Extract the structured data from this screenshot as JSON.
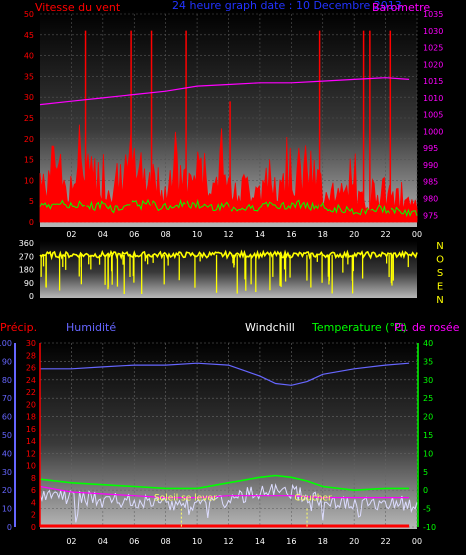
{
  "header": {
    "left_title": "Vitesse du vent",
    "center_title": "24 heure graph date : 10 Decembre 2013",
    "right_title": "Barometre"
  },
  "colors": {
    "wind": "#ff0000",
    "gust_base": "#00ff00",
    "barometer": "#ff00ff",
    "direction": "#ffff00",
    "humidity": "#6666ff",
    "temperature": "#00ff00",
    "dewpoint": "#ff00ff",
    "windchill": "#ffffff",
    "rain": "#ff0000",
    "precip_axis": "#6666ff",
    "label_blue": "#2233ff",
    "annotation": "#ffff66"
  },
  "time_labels": [
    "02",
    "04",
    "06",
    "08",
    "10",
    "12",
    "14",
    "16",
    "18",
    "20",
    "22",
    "00"
  ],
  "compass": [
    "N",
    "O",
    "S",
    "E",
    "N"
  ],
  "chart_data": [
    {
      "type": "line",
      "name": "wind",
      "y_left_ticks": [
        0,
        5,
        10,
        15,
        20,
        25,
        30,
        35,
        40,
        45,
        50
      ],
      "y_right_ticks": [
        975,
        980,
        985,
        990,
        995,
        1000,
        1005,
        1010,
        1015,
        1020,
        1025,
        1030,
        1035
      ],
      "ylim_left": [
        0,
        50
      ],
      "ylim_right": [
        973,
        1035
      ],
      "wind_base_avg": [
        14,
        12,
        16,
        10,
        12,
        13,
        11,
        14,
        9,
        12,
        13,
        12,
        14,
        10,
        11,
        13,
        12,
        13,
        12,
        11,
        12,
        10,
        9,
        10,
        11,
        12,
        11,
        13,
        14,
        12,
        11,
        10,
        9,
        8,
        7,
        6,
        8,
        9,
        7,
        6,
        5,
        4
      ],
      "gust_spikes": [
        [
          2.9,
          46
        ],
        [
          5.8,
          46
        ],
        [
          7.1,
          46
        ],
        [
          9.3,
          46
        ],
        [
          17.8,
          46
        ],
        [
          20.6,
          46
        ],
        [
          21.0,
          46
        ],
        [
          22.3,
          46
        ],
        [
          12.1,
          29
        ]
      ],
      "barometer": [
        [
          0,
          1008
        ],
        [
          2,
          1009
        ],
        [
          4,
          1010
        ],
        [
          6,
          1011
        ],
        [
          8,
          1012
        ],
        [
          10,
          1013.5
        ],
        [
          12,
          1014
        ],
        [
          14,
          1014.5
        ],
        [
          16,
          1014.5
        ],
        [
          18,
          1015
        ],
        [
          20,
          1015.5
        ],
        [
          22,
          1016
        ],
        [
          23.5,
          1015.5
        ]
      ]
    },
    {
      "type": "scatter",
      "name": "wind_direction",
      "y_ticks": [
        0,
        90,
        180,
        270,
        360
      ],
      "ylim": [
        0,
        360
      ],
      "level": 280,
      "spread": 40
    },
    {
      "type": "line",
      "name": "weather",
      "labels": {
        "precip": "Précip.",
        "humidity": "Humidité",
        "windchill": "Windchill",
        "temperature": "Temperature (°C)",
        "dewpoint": "Pt. de rosée",
        "sunrise": "Soleil se lever",
        "sunset": "Coucher"
      },
      "humidity_ticks": [
        0,
        10,
        20,
        30,
        40,
        50,
        60,
        70,
        80,
        90,
        100
      ],
      "precip_ticks": [
        0,
        2,
        4,
        6,
        8,
        10,
        12,
        14,
        16,
        18,
        20,
        22,
        24,
        26,
        28,
        30
      ],
      "temp_ticks": [
        -10,
        -5,
        0,
        5,
        10,
        15,
        20,
        25,
        30,
        35,
        40
      ],
      "humidity_ylim": [
        0,
        100
      ],
      "precip_ylim": [
        0,
        30
      ],
      "temp_ylim": [
        -10,
        40
      ],
      "humidity": [
        [
          0,
          86
        ],
        [
          2,
          86
        ],
        [
          4,
          87
        ],
        [
          6,
          88
        ],
        [
          8,
          88
        ],
        [
          10,
          89
        ],
        [
          12,
          88
        ],
        [
          13,
          85
        ],
        [
          14,
          82
        ],
        [
          15,
          78
        ],
        [
          16,
          77
        ],
        [
          17,
          79
        ],
        [
          18,
          83
        ],
        [
          20,
          86
        ],
        [
          22,
          88
        ],
        [
          23.5,
          89
        ]
      ],
      "temperature": [
        [
          0,
          3
        ],
        [
          2,
          2
        ],
        [
          4,
          1.5
        ],
        [
          6,
          1
        ],
        [
          8,
          0.5
        ],
        [
          10,
          0.5
        ],
        [
          12,
          2
        ],
        [
          14,
          3.5
        ],
        [
          15,
          4
        ],
        [
          16,
          3.5
        ],
        [
          17,
          2.5
        ],
        [
          18,
          1
        ],
        [
          20,
          0
        ],
        [
          22,
          0.5
        ],
        [
          23.5,
          0.5
        ]
      ],
      "dewpoint": [
        [
          0,
          1
        ],
        [
          2,
          -0.5
        ],
        [
          4,
          -1
        ],
        [
          6,
          -1.5
        ],
        [
          8,
          -2
        ],
        [
          10,
          -2
        ],
        [
          12,
          -1.5
        ],
        [
          14,
          -1.5
        ],
        [
          15,
          -1.5
        ],
        [
          16,
          -1.5
        ],
        [
          18,
          -2
        ],
        [
          20,
          -2
        ],
        [
          22,
          -2
        ],
        [
          23.5,
          -2
        ]
      ],
      "rain": [
        [
          0,
          0
        ],
        [
          23.5,
          0
        ]
      ],
      "sunrise_hour": 9,
      "sunset_hour": 17
    }
  ]
}
